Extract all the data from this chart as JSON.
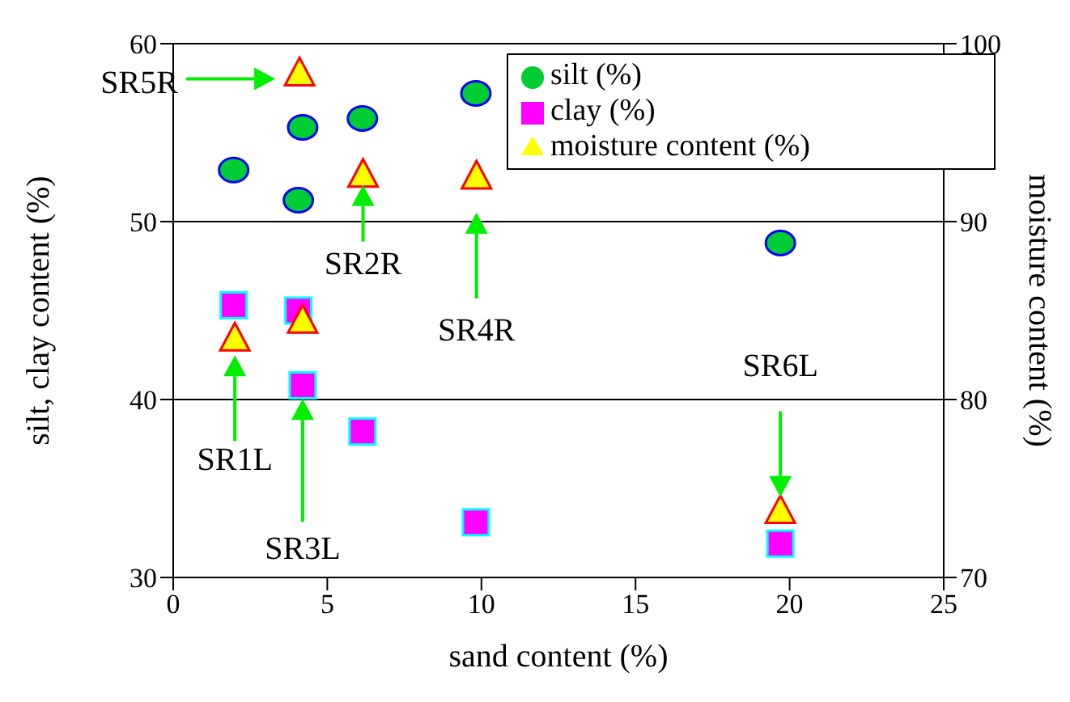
{
  "chart_data": {
    "type": "scatter",
    "xlabel": "sand content (%)",
    "ylabel": "silt, clay content (%)",
    "y2label": "moisture content (%)",
    "xlim": [
      0,
      25
    ],
    "xticks": [
      0,
      5,
      10,
      15,
      20,
      25
    ],
    "ylim": [
      30,
      60
    ],
    "yticks": [
      30,
      40,
      50,
      60
    ],
    "y2lim": [
      70,
      100
    ],
    "y2ticks": [
      70,
      80,
      90,
      100
    ],
    "grid": "y",
    "legend": "top right",
    "series": [
      {
        "name": "silt (%)",
        "color": "#00cc33",
        "marker": "circle",
        "x": [
          1.96,
          4.2,
          4.06,
          6.14,
          9.82,
          19.7
        ],
        "values": [
          52.9,
          55.3,
          51.2,
          55.8,
          57.2,
          48.8
        ]
      },
      {
        "name": "clay (%)",
        "color": "#ff00ff",
        "marker": "square",
        "x": [
          1.96,
          4.06,
          4.2,
          6.14,
          9.82,
          19.7
        ],
        "values": [
          45.3,
          45.0,
          40.8,
          38.2,
          33.1,
          31.9
        ]
      },
      {
        "name": "moisture content (%)",
        "color": "#ffff00",
        "marker": "triangle",
        "axis": "y2",
        "x": [
          4.1,
          2.0,
          4.2,
          6.16,
          9.84,
          19.7
        ],
        "values": [
          98.3,
          83.4,
          84.4,
          92.6,
          92.5,
          73.7
        ]
      }
    ],
    "annotations": [
      "SR5R",
      "SR1L",
      "SR3L",
      "SR2R",
      "SR4R",
      "SR6L"
    ]
  }
}
